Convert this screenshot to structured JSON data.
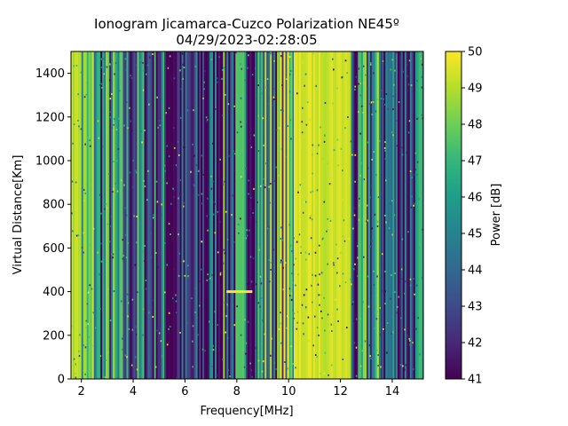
{
  "chart_data": {
    "type": "heatmap",
    "title": "Ionogram Jicamarca-Cuzco Polarization NE45º",
    "subtitle": "04/29/2023-02:28:05",
    "xlabel": "Frequency[MHz]",
    "ylabel": "Virtual Distance[Km]",
    "xlim": [
      1.6,
      15.2
    ],
    "ylim": [
      0,
      1500
    ],
    "x_ticks": [
      2,
      4,
      6,
      8,
      10,
      12,
      14
    ],
    "y_ticks": [
      0,
      200,
      400,
      600,
      800,
      1000,
      1200,
      1400
    ],
    "colorbar": {
      "label": "Power [dB]",
      "min": 41,
      "max": 50,
      "ticks": [
        41,
        42,
        43,
        44,
        45,
        46,
        47,
        48,
        49,
        50
      ],
      "colormap": "viridis"
    },
    "frequency_bands_dB": [
      {
        "from": 1.6,
        "to": 2.0,
        "power": 49.5
      },
      {
        "from": 2.0,
        "to": 2.6,
        "power": 46.5
      },
      {
        "from": 2.6,
        "to": 3.4,
        "power": 45.0
      },
      {
        "from": 3.4,
        "to": 4.6,
        "power": 44.0
      },
      {
        "from": 4.6,
        "to": 5.2,
        "power": 43.5
      },
      {
        "from": 5.2,
        "to": 5.8,
        "power": 42.0
      },
      {
        "from": 5.8,
        "to": 6.6,
        "power": 41.5
      },
      {
        "from": 6.6,
        "to": 7.4,
        "power": 42.5
      },
      {
        "from": 7.4,
        "to": 8.8,
        "power": 44.0
      },
      {
        "from": 8.8,
        "to": 9.6,
        "power": 45.5
      },
      {
        "from": 9.6,
        "to": 10.2,
        "power": 46.5
      },
      {
        "from": 10.2,
        "to": 12.4,
        "power": 49.8
      },
      {
        "from": 12.4,
        "to": 12.8,
        "power": 43.0
      },
      {
        "from": 12.8,
        "to": 13.6,
        "power": 45.0
      },
      {
        "from": 13.6,
        "to": 14.2,
        "power": 44.0
      },
      {
        "from": 14.2,
        "to": 15.2,
        "power": 43.5
      }
    ],
    "echo_trace": {
      "freq_from": 7.6,
      "freq_to": 8.6,
      "virtual_distance": 400,
      "power": 50
    }
  }
}
